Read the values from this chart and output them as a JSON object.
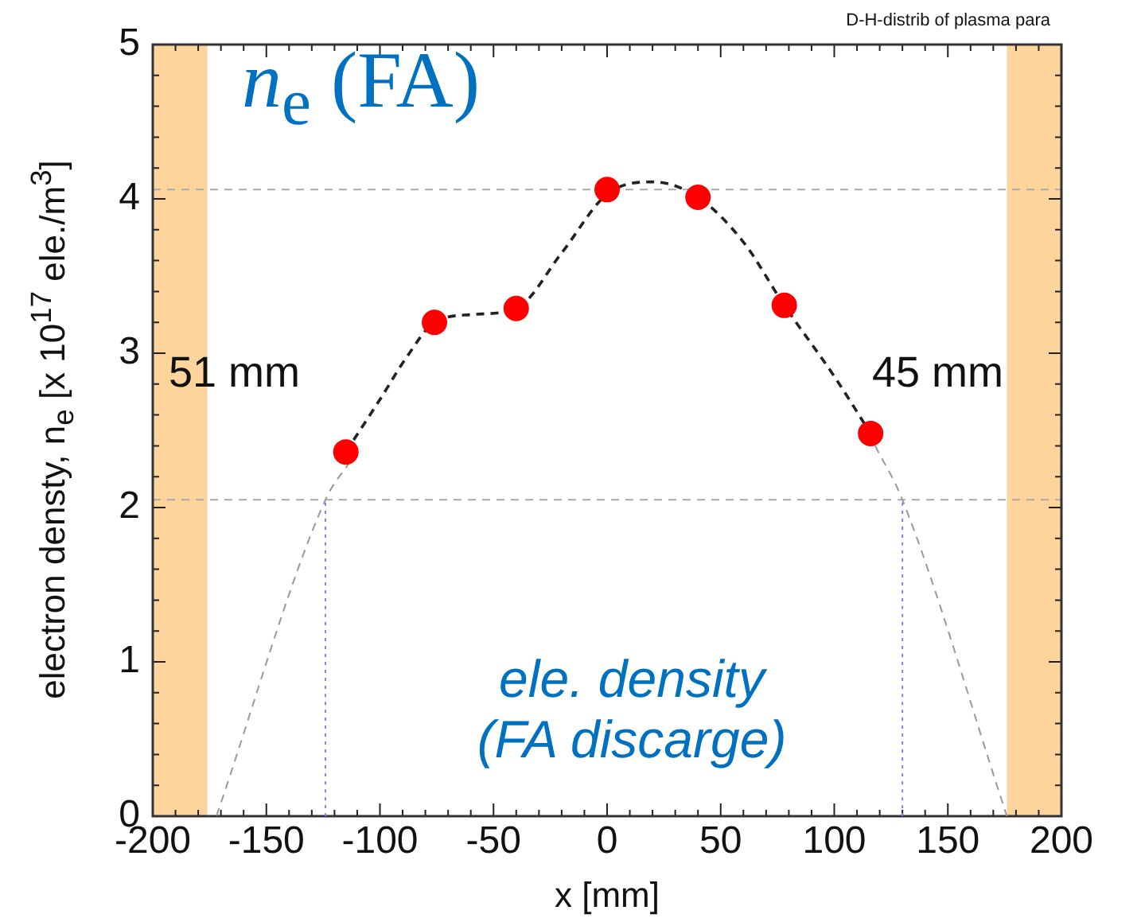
{
  "chart_data": {
    "type": "scatter",
    "subtitle": "D-H-distrib of plasma para",
    "xlabel": "x [mm]",
    "ylabel": "electron densty, n$_{e}$ [x 10$^{17}$ ele./m$^{3}$]",
    "annotations": [
      "n$_{e}$ (FA)",
      "51 mm",
      "45 mm",
      "ele. density\n(FA discarge)"
    ],
    "xlim": [
      -200,
      200
    ],
    "ylim": [
      0,
      5
    ],
    "xticks": [
      -200,
      {
        "value": -190,
        "label": null
      },
      {
        "value": -180,
        "label": null
      },
      {
        "value": -170,
        "label": null
      },
      {
        "value": -160,
        "label": null
      },
      -150,
      {
        "value": -140,
        "label": null
      },
      {
        "value": -130,
        "label": null
      },
      {
        "value": -120,
        "label": null
      },
      {
        "value": -110,
        "label": null
      },
      -100,
      {
        "value": -90,
        "label": null
      },
      {
        "value": -80,
        "label": null
      },
      {
        "value": -70,
        "label": null
      },
      {
        "value": -60,
        "label": null
      },
      -50,
      {
        "value": -40,
        "label": null
      },
      {
        "value": -30,
        "label": null
      },
      {
        "value": -20,
        "label": null
      },
      {
        "value": -10,
        "label": null
      },
      0,
      {
        "value": 10,
        "label": null
      },
      {
        "value": 20,
        "label": null
      },
      {
        "value": 30,
        "label": null
      },
      {
        "value": 40,
        "label": null
      },
      50,
      {
        "value": 60,
        "label": null
      },
      {
        "value": 70,
        "label": null
      },
      {
        "value": 80,
        "label": null
      },
      {
        "value": 90,
        "label": null
      },
      100,
      {
        "value": 110,
        "label": null
      },
      {
        "value": 120,
        "label": null
      },
      {
        "value": 130,
        "label": null
      },
      {
        "value": 140,
        "label": null
      },
      150,
      {
        "value": 160,
        "label": null
      },
      {
        "value": 170,
        "label": null
      },
      {
        "value": 180,
        "label": null
      },
      {
        "value": 190,
        "label": null
      },
      200
    ],
    "yticks": [
      0,
      {
        "value": 0.2,
        "label": null
      },
      {
        "value": 0.4,
        "label": null
      },
      {
        "value": 0.6,
        "label": null
      },
      {
        "value": 0.8,
        "label": null
      },
      1,
      {
        "value": 1.2,
        "label": null
      },
      {
        "value": 1.4,
        "label": null
      },
      {
        "value": 1.6,
        "label": null
      },
      {
        "value": 1.8,
        "label": null
      },
      2,
      {
        "value": 2.2,
        "label": null
      },
      {
        "value": 2.4,
        "label": null
      },
      {
        "value": 2.6,
        "label": null
      },
      {
        "value": 2.8,
        "label": null
      },
      3,
      {
        "value": 3.2,
        "label": null
      },
      {
        "value": 3.4,
        "label": null
      },
      {
        "value": 3.6,
        "label": null
      },
      {
        "value": 3.8,
        "label": null
      },
      4,
      {
        "value": 4.2,
        "label": null
      },
      {
        "value": 4.4,
        "label": null
      },
      {
        "value": 4.6,
        "label": null
      },
      {
        "value": 4.8,
        "label": null
      },
      5
    ],
    "series": [
      {
        "type": "scatter",
        "color": "#ff0000",
        "marker": "circle",
        "x": [
          -115,
          -76,
          -40,
          0,
          40,
          78,
          116
        ],
        "values": [
          2.36,
          3.2,
          3.29,
          4.06,
          4.01,
          3.31,
          2.48
        ]
      },
      {
        "type": "line",
        "color": "#222222",
        "marker": "none",
        "line_style": "dashed",
        "x": [
          -115,
          -100,
          -88,
          -76,
          -60,
          -40,
          -20,
          0,
          20,
          40,
          60,
          78,
          100,
          116
        ],
        "values": [
          2.36,
          2.7,
          2.98,
          3.2,
          3.25,
          3.29,
          3.65,
          4.03,
          4.11,
          4.01,
          3.72,
          3.31,
          2.85,
          2.48
        ]
      },
      {
        "type": "line",
        "color": "#999999",
        "marker": "none",
        "line_style": "dashed",
        "x": [
          -113,
          -124,
          -172
        ],
        "values": [
          2.3,
          2.05,
          0
        ]
      },
      {
        "type": "line",
        "color": "#999999",
        "marker": "none",
        "line_style": "dashed",
        "x": [
          118,
          130,
          176
        ],
        "values": [
          2.4,
          2.05,
          0
        ]
      },
      {
        "type": "line",
        "color": "#8080ff",
        "marker": "none",
        "line_style": "dotted",
        "x": [
          -124,
          -124
        ],
        "values": [
          0,
          2.05
        ]
      },
      {
        "type": "line",
        "color": "#8080ff",
        "marker": "none",
        "line_style": "dotted",
        "x": [
          130,
          130
        ],
        "values": [
          0,
          2.05
        ]
      }
    ],
    "ref_lines": [
      {
        "axis": "y",
        "value": 4.06,
        "color": "#aaaaaa",
        "line_style": "dashed"
      },
      {
        "axis": "y",
        "value": 2.05,
        "color": "#aaaaaa",
        "line_style": "dashed"
      }
    ],
    "bands": [
      {
        "axis": "x",
        "from": -200,
        "to": -176,
        "color": "#fdd59c"
      },
      {
        "axis": "x",
        "from": 176,
        "to": 200,
        "color": "#fdd59c"
      }
    ],
    "grid": false,
    "legend": false
  }
}
